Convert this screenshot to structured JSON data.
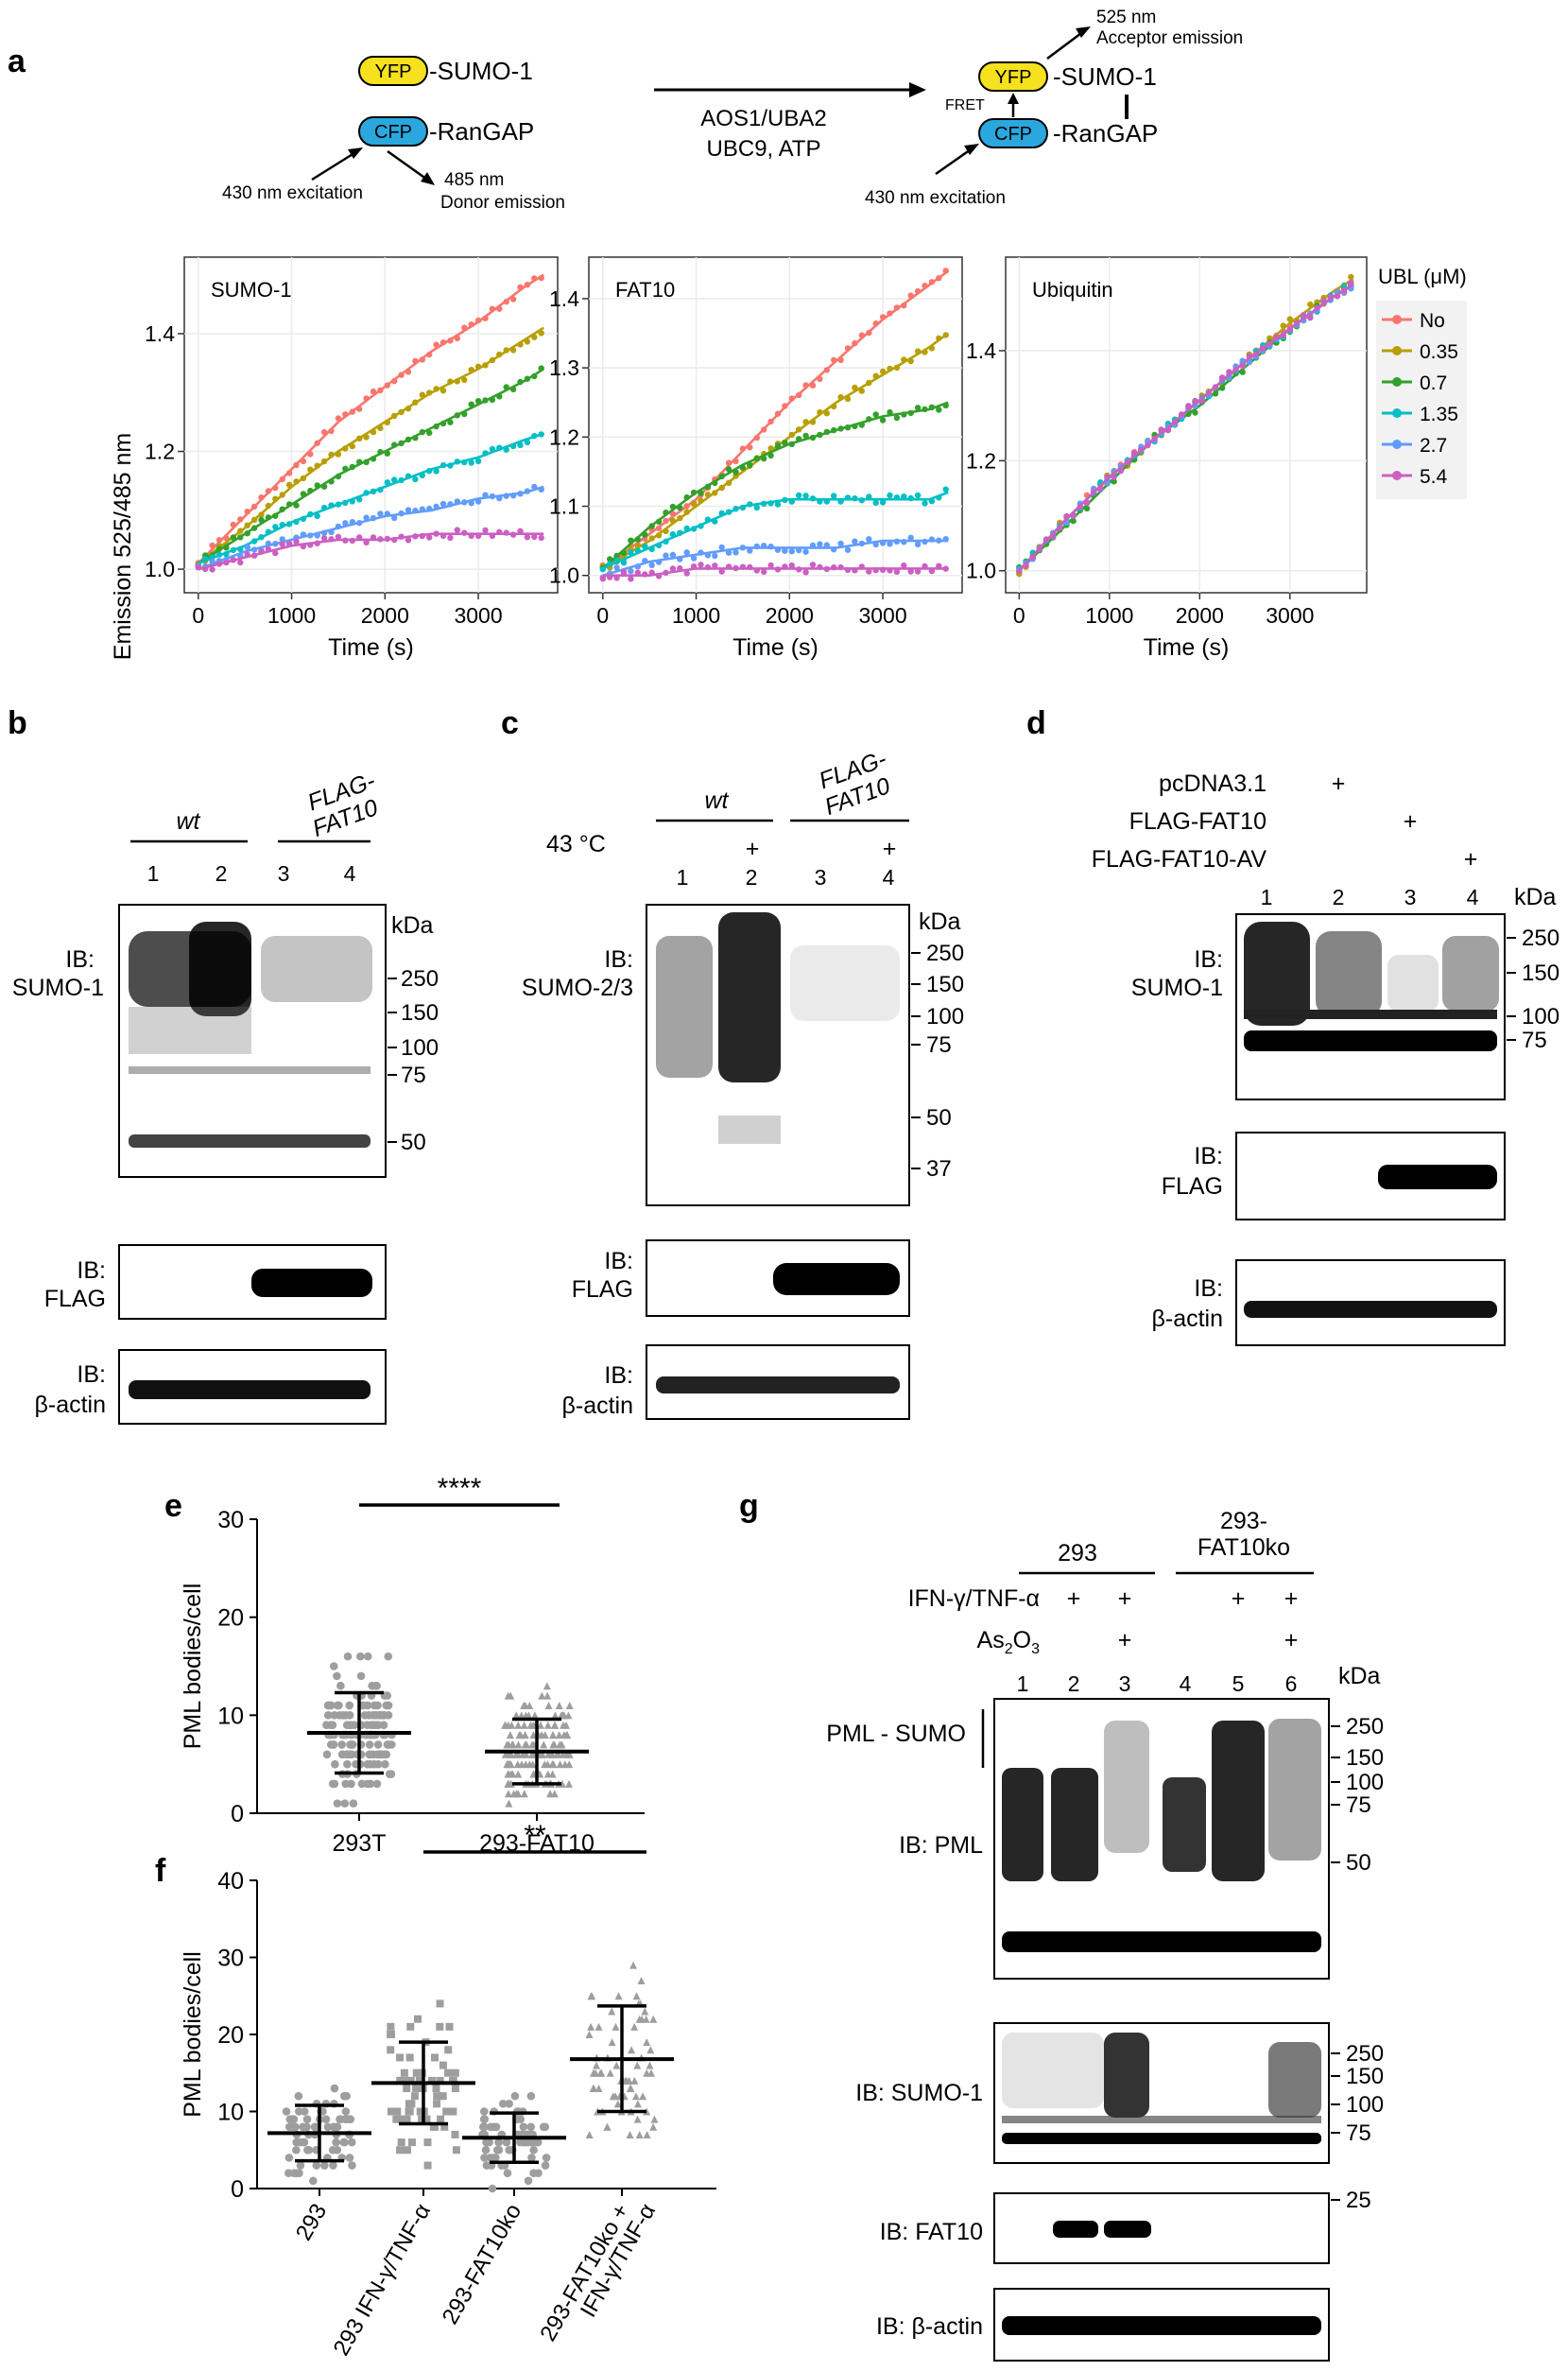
{
  "panel_letters": {
    "a": "a",
    "b": "b",
    "c": "c",
    "d": "d",
    "e": "e",
    "f": "f",
    "g": "g"
  },
  "scheme": {
    "yfp": "YFP",
    "cfp": "CFP",
    "sumo1": "-SUMO-1",
    "rangap": "-RanGAP",
    "excitation": "430 nm excitation",
    "donor_nm": "485 nm",
    "donor_label": "Donor emission",
    "acceptor_nm": "525 nm",
    "acceptor_label": "Acceptor emission",
    "enzymes_line1": "AOS1/UBA2",
    "enzymes_line2": "UBC9, ATP",
    "fret": "FRET",
    "colors": {
      "yfp": "#f5e11d",
      "cfp": "#2aa7df"
    }
  },
  "chart_data": [
    {
      "type": "line",
      "title": "SUMO-1",
      "xlabel": "Time (s)",
      "ylabel": "Emission 525/485 nm",
      "xlim": [
        -150,
        3850
      ],
      "ylim": [
        0.96,
        1.53
      ],
      "xticks": [
        0,
        1000,
        2000,
        3000
      ],
      "yticks": [
        1.0,
        1.2,
        1.4
      ],
      "x": [
        0,
        500,
        1000,
        1500,
        2000,
        2500,
        3000,
        3500,
        3700
      ],
      "series": [
        {
          "name": "No",
          "values": [
            1.01,
            1.09,
            1.17,
            1.25,
            1.31,
            1.37,
            1.42,
            1.48,
            1.5
          ]
        },
        {
          "name": "0.35",
          "values": [
            1.01,
            1.07,
            1.14,
            1.2,
            1.25,
            1.3,
            1.34,
            1.39,
            1.41
          ]
        },
        {
          "name": "0.7",
          "values": [
            1.01,
            1.06,
            1.11,
            1.16,
            1.2,
            1.24,
            1.28,
            1.32,
            1.34
          ]
        },
        {
          "name": "1.35",
          "values": [
            1.01,
            1.04,
            1.08,
            1.11,
            1.14,
            1.17,
            1.19,
            1.22,
            1.23
          ]
        },
        {
          "name": "2.7",
          "values": [
            1.0,
            1.03,
            1.05,
            1.07,
            1.09,
            1.1,
            1.12,
            1.13,
            1.14
          ]
        },
        {
          "name": "5.4",
          "values": [
            1.0,
            1.02,
            1.04,
            1.05,
            1.05,
            1.06,
            1.06,
            1.06,
            1.06
          ]
        }
      ]
    },
    {
      "type": "line",
      "title": "FAT10",
      "xlabel": "Time (s)",
      "ylabel": "",
      "xlim": [
        -150,
        3850
      ],
      "ylim": [
        0.975,
        1.46
      ],
      "xticks": [
        0,
        1000,
        2000,
        3000
      ],
      "yticks": [
        1.0,
        1.1,
        1.2,
        1.3,
        1.4
      ],
      "x": [
        0,
        500,
        1000,
        1500,
        2000,
        2500,
        3000,
        3500,
        3700
      ],
      "series": [
        {
          "name": "No",
          "values": [
            1.01,
            1.06,
            1.11,
            1.18,
            1.25,
            1.31,
            1.37,
            1.42,
            1.44
          ]
        },
        {
          "name": "0.35",
          "values": [
            1.01,
            1.05,
            1.1,
            1.15,
            1.2,
            1.25,
            1.29,
            1.33,
            1.35
          ]
        },
        {
          "name": "0.7",
          "values": [
            1.01,
            1.07,
            1.12,
            1.16,
            1.19,
            1.21,
            1.23,
            1.24,
            1.25
          ]
        },
        {
          "name": "1.35",
          "values": [
            1.01,
            1.04,
            1.07,
            1.1,
            1.11,
            1.11,
            1.11,
            1.11,
            1.12
          ]
        },
        {
          "name": "2.7",
          "values": [
            1.0,
            1.02,
            1.03,
            1.04,
            1.04,
            1.04,
            1.05,
            1.05,
            1.05
          ]
        },
        {
          "name": "5.4",
          "values": [
            1.0,
            1.0,
            1.01,
            1.01,
            1.01,
            1.01,
            1.01,
            1.01,
            1.01
          ]
        }
      ]
    },
    {
      "type": "line",
      "title": "Ubiquitin",
      "xlabel": "Time (s)",
      "ylabel": "",
      "xlim": [
        -150,
        3850
      ],
      "ylim": [
        0.96,
        1.57
      ],
      "xticks": [
        0,
        1000,
        2000,
        3000
      ],
      "yticks": [
        1.0,
        1.2,
        1.4
      ],
      "x": [
        0,
        500,
        1000,
        1500,
        2000,
        2500,
        3000,
        3500,
        3700
      ],
      "series": [
        {
          "name": "No",
          "values": [
            1.0,
            1.09,
            1.17,
            1.24,
            1.31,
            1.38,
            1.44,
            1.5,
            1.52
          ]
        },
        {
          "name": "0.35",
          "values": [
            1.0,
            1.09,
            1.17,
            1.24,
            1.31,
            1.38,
            1.45,
            1.51,
            1.53
          ]
        },
        {
          "name": "0.7",
          "values": [
            1.0,
            1.08,
            1.16,
            1.24,
            1.3,
            1.37,
            1.44,
            1.5,
            1.52
          ]
        },
        {
          "name": "1.35",
          "values": [
            1.0,
            1.09,
            1.17,
            1.24,
            1.31,
            1.38,
            1.44,
            1.5,
            1.52
          ]
        },
        {
          "name": "2.7",
          "values": [
            1.0,
            1.09,
            1.17,
            1.24,
            1.31,
            1.38,
            1.44,
            1.5,
            1.52
          ]
        },
        {
          "name": "5.4",
          "values": [
            1.0,
            1.09,
            1.17,
            1.24,
            1.31,
            1.38,
            1.44,
            1.5,
            1.52
          ]
        }
      ]
    },
    {
      "type": "scatter",
      "title": "",
      "ylabel": "PML bodies/cell",
      "ylim": [
        0,
        30
      ],
      "yticks": [
        0,
        10,
        20,
        30
      ],
      "categories": [
        "293T",
        "293-FAT10"
      ],
      "series": [
        {
          "name": "293T",
          "mean": 8.2,
          "sd_low": 4.1,
          "sd_high": 12.3
        },
        {
          "name": "293-FAT10",
          "mean": 6.3,
          "sd_low": 3.0,
          "sd_high": 9.6
        }
      ],
      "significance": "****"
    },
    {
      "type": "scatter",
      "title": "",
      "ylabel": "PML bodies/cell",
      "ylim": [
        0,
        40
      ],
      "yticks": [
        0,
        10,
        20,
        30,
        40
      ],
      "categories": [
        "293",
        "293 IFN-γ/TNF-α",
        "293-FAT10ko",
        "293-FAT10ko +\nIFN-γ/TNF-α"
      ],
      "series": [
        {
          "name": "293",
          "mean": 7.2,
          "sd_low": 3.6,
          "sd_high": 10.8
        },
        {
          "name": "293 IFN-γ/TNF-α",
          "mean": 13.7,
          "sd_low": 8.4,
          "sd_high": 19.0
        },
        {
          "name": "293-FAT10ko",
          "mean": 6.6,
          "sd_low": 3.4,
          "sd_high": 9.8
        },
        {
          "name": "293-FAT10ko + IFN-γ/TNF-α",
          "mean": 16.8,
          "sd_low": 10.0,
          "sd_high": 23.7
        }
      ],
      "significance": "**"
    }
  ],
  "legend": {
    "title": "UBL (μM)",
    "entries": [
      "No",
      "0.35",
      "0.7",
      "1.35",
      "2.7",
      "5.4"
    ],
    "colors": [
      "#f8766d",
      "#b79f00",
      "#33a02c",
      "#00bfc4",
      "#619cff",
      "#cc5fc2"
    ]
  },
  "blot_b": {
    "groups": [
      "wt",
      "FLAG-\nFAT10"
    ],
    "group1": "wt",
    "group2_l1": "FLAG-",
    "group2_l2": "FAT10",
    "lanes": [
      "1",
      "2",
      "3",
      "4"
    ],
    "kda": "kDa",
    "markers": [
      "250",
      "150",
      "100",
      "75",
      "50"
    ],
    "ib1_l1": "IB:",
    "ib1_l2": "SUMO-1",
    "ib2_l1": "IB:",
    "ib2_l2": "FLAG",
    "ib3_l1": "IB:",
    "ib3_l2": "β-actin"
  },
  "blot_c": {
    "group1": "wt",
    "group2_l1": "FLAG-",
    "group2_l2": "FAT10",
    "temp": "43 °C",
    "plus": "+",
    "lanes": [
      "1",
      "2",
      "3",
      "4"
    ],
    "kda": "kDa",
    "markers": [
      "250",
      "150",
      "100",
      "75",
      "50",
      "37"
    ],
    "ib1_l1": "IB:",
    "ib1_l2": "SUMO-2/3",
    "ib2_l1": "IB:",
    "ib2_l2": "FLAG",
    "ib3_l1": "IB:",
    "ib3_l2": "β-actin"
  },
  "blot_d": {
    "rows": [
      "pcDNA3.1",
      "FLAG-FAT10",
      "FLAG-FAT10-AV"
    ],
    "plus": "+",
    "lanes": [
      "1",
      "2",
      "3",
      "4"
    ],
    "kda": "kDa",
    "markers": [
      "250",
      "150",
      "100",
      "75"
    ],
    "ib1_l1": "IB:",
    "ib1_l2": "SUMO-1",
    "ib2_l1": "IB:",
    "ib2_l2": "FLAG",
    "ib3_l1": "IB:",
    "ib3_l2": "β-actin"
  },
  "blot_g": {
    "group1": "293",
    "group2_l1": "293-",
    "group2_l2": "FAT10ko",
    "row1": "IFN-γ/TNF-α",
    "row2_base": "As",
    "row2_sub": "2",
    "row2_tail": "O",
    "row2_sub2": "3",
    "plus": "+",
    "lanes": [
      "1",
      "2",
      "3",
      "4",
      "5",
      "6"
    ],
    "kda": "kDa",
    "markers_pml": [
      "250",
      "150",
      "100",
      "75",
      "50"
    ],
    "markers_sumo": [
      "250",
      "150",
      "100",
      "75"
    ],
    "markers_fat": [
      "25"
    ],
    "pml_sumo": "PML - SUMO",
    "ib_pml": "IB: PML",
    "ib_sumo": "IB: SUMO-1",
    "ib_fat": "IB: FAT10",
    "ib_actin": "IB: β-actin"
  }
}
